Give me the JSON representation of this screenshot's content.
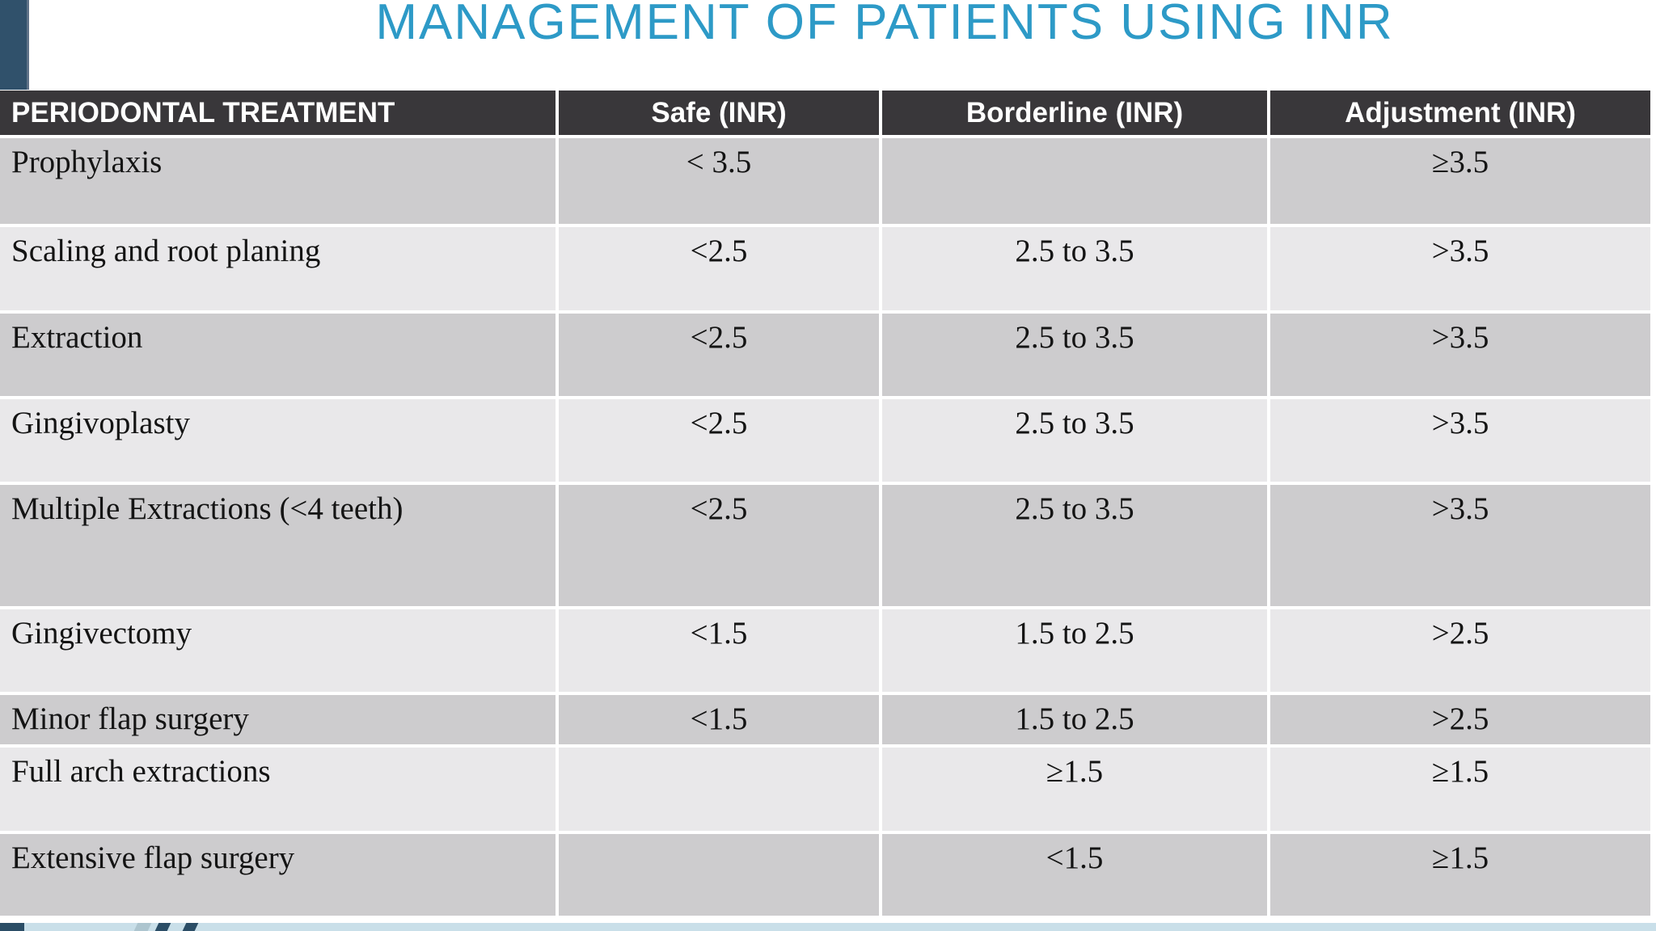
{
  "slide": {
    "title": "MANAGEMENT OF PATIENTS USING INR"
  },
  "table": {
    "columns": [
      "PERIODONTAL TREATMENT",
      "Safe (INR)",
      "Borderline (INR)",
      "Adjustment (INR)"
    ],
    "rows": [
      {
        "treatment": "Prophylaxis",
        "safe": "< 3.5",
        "borderline": "",
        "adjustment": "≥3.5"
      },
      {
        "treatment": "Scaling and root planing",
        "safe": "<2.5",
        "borderline": "2.5 to 3.5",
        "adjustment": ">3.5"
      },
      {
        "treatment": "Extraction",
        "safe": "<2.5",
        "borderline": "2.5 to 3.5",
        "adjustment": ">3.5"
      },
      {
        "treatment": "Gingivoplasty",
        "safe": "<2.5",
        "borderline": "2.5 to 3.5",
        "adjustment": ">3.5"
      },
      {
        "treatment": "Multiple Extractions (<4 teeth)",
        "safe": "<2.5",
        "borderline": "2.5 to 3.5",
        "adjustment": ">3.5"
      },
      {
        "treatment": "Gingivectomy",
        "safe": "<1.5",
        "borderline": "1.5 to 2.5",
        "adjustment": ">2.5"
      },
      {
        "treatment": "Minor flap surgery",
        "safe": "<1.5",
        "borderline": "1.5 to 2.5",
        "adjustment": ">2.5"
      },
      {
        "treatment": "Full arch extractions",
        "safe": "",
        "borderline": "≥1.5",
        "adjustment": "≥1.5"
      },
      {
        "treatment": "Extensive flap surgery",
        "safe": "",
        "borderline": "<1.5",
        "adjustment": "≥1.5"
      }
    ]
  },
  "colors": {
    "accent_blue": "#2d9ac7",
    "header_bg": "#39373a",
    "row_dark": "#cdccce",
    "row_light": "#e9e8ea",
    "sidebar_bar": "#30516b",
    "footer_strip": "#c9dfe9",
    "footer_navy": "#2b4d66",
    "footer_gray_blue": "#adc5cf"
  }
}
